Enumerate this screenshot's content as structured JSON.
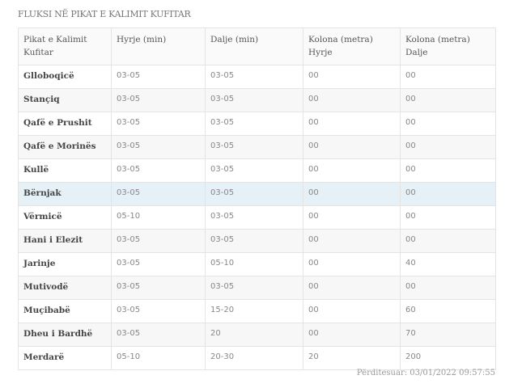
{
  "title": "FLUKSI NË PIKAT E KALIMIT KUFITAR",
  "columns": [
    "Pikat e Kalimit Kufitar",
    "Hyrje (min)",
    "Dalje (min)",
    "Kolona (metra) Hyrje",
    "Kolona (metra) Dalje"
  ],
  "rows": [
    [
      "Glloboqicë",
      "03-05",
      "03-05",
      "00",
      "00"
    ],
    [
      "Stançiq",
      "03-05",
      "03-05",
      "00",
      "00"
    ],
    [
      "Qafë e Prushit",
      "03-05",
      "03-05",
      "00",
      "00"
    ],
    [
      "Qafë e Morinës",
      "03-05",
      "03-05",
      "00",
      "00"
    ],
    [
      "Kullë",
      "03-05",
      "03-05",
      "00",
      "00"
    ],
    [
      "Bërnjak",
      "03-05",
      "03-05",
      "00",
      "00"
    ],
    [
      "Vërmicë",
      "05-10",
      "03-05",
      "00",
      "00"
    ],
    [
      "Hani i Elezit",
      "03-05",
      "03-05",
      "00",
      "00"
    ],
    [
      "Jarinje",
      "03-05",
      "05-10",
      "00",
      "40"
    ],
    [
      "Mutivodë",
      "03-05",
      "03-05",
      "00",
      "00"
    ],
    [
      "Muçibabë",
      "03-05",
      "15-20",
      "00",
      "60"
    ],
    [
      "Dheu i Bardhë",
      "03-05",
      "20",
      "00",
      "70"
    ],
    [
      "Merdarë",
      "05-10",
      "20-30",
      "20",
      "200"
    ]
  ],
  "highlighted_row": "Bërnjak",
  "colors": {
    "highlight": "#e6f0f7",
    "stripe": "#f7f7f7"
  },
  "updated": "Përditesuar: 03/01/2022 09:57:55"
}
